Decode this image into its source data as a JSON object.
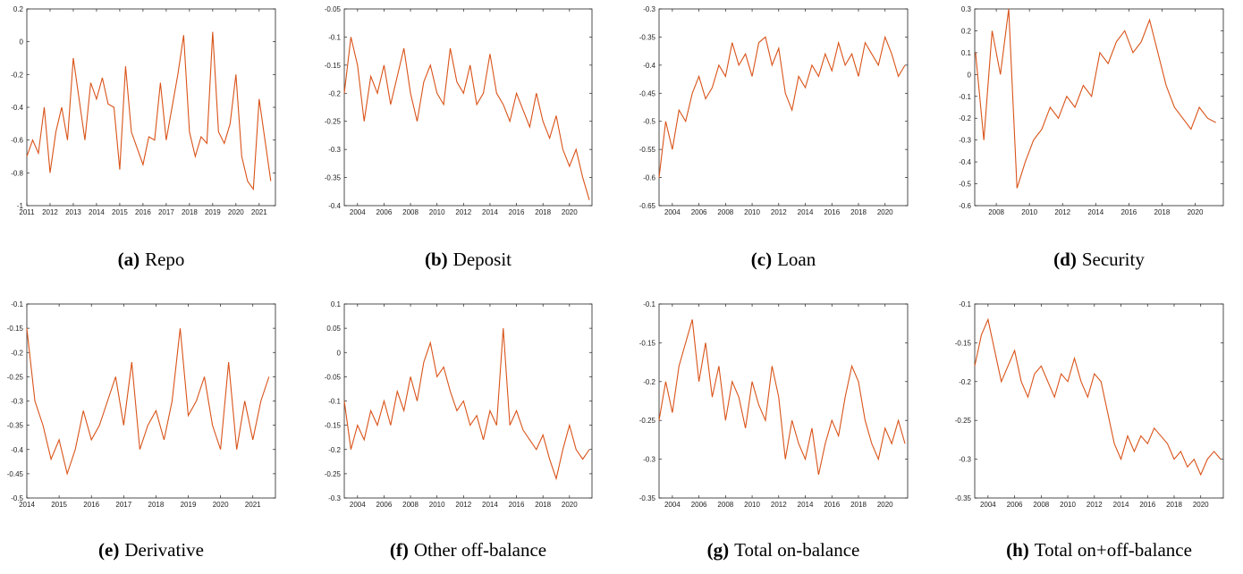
{
  "chart_data": [
    {
      "type": "line",
      "caption_label": "(a)",
      "caption": "Repo",
      "x": [
        2011,
        2011.25,
        2011.5,
        2011.75,
        2012,
        2012.25,
        2012.5,
        2012.75,
        2013,
        2013.25,
        2013.5,
        2013.75,
        2014,
        2014.25,
        2014.5,
        2014.75,
        2015,
        2015.25,
        2015.5,
        2015.75,
        2016,
        2016.25,
        2016.5,
        2016.75,
        2017,
        2017.25,
        2017.5,
        2017.75,
        2018,
        2018.25,
        2018.5,
        2018.75,
        2019,
        2019.25,
        2019.5,
        2019.75,
        2020,
        2020.25,
        2020.5,
        2020.75,
        2021,
        2021.25,
        2021.5
      ],
      "series": [
        {
          "color": "#d95319",
          "values": [
            -0.7,
            -0.6,
            -0.68,
            -0.4,
            -0.8,
            -0.55,
            -0.4,
            -0.6,
            -0.1,
            -0.35,
            -0.6,
            -0.25,
            -0.35,
            -0.22,
            -0.38,
            -0.4,
            -0.78,
            -0.15,
            -0.55,
            -0.65,
            -0.75,
            -0.58,
            -0.6,
            -0.25,
            -0.6,
            -0.4,
            -0.2,
            0.04,
            -0.55,
            -0.7,
            -0.58,
            -0.62,
            0.06,
            -0.55,
            -0.62,
            -0.5,
            -0.2,
            -0.7,
            -0.85,
            -0.9,
            -0.35,
            -0.6,
            -0.85
          ]
        }
      ],
      "xlim": [
        2011,
        2021.7
      ],
      "ylim": [
        -1,
        0.2
      ],
      "xticks": [
        2011,
        2012,
        2013,
        2014,
        2015,
        2016,
        2017,
        2018,
        2019,
        2020,
        2021
      ],
      "yticks": [
        -1,
        -0.8,
        -0.6,
        -0.4,
        -0.2,
        0,
        0.2
      ]
    },
    {
      "type": "line",
      "caption_label": "(b)",
      "caption": "Deposit",
      "x": [
        2003,
        2003.5,
        2004,
        2004.5,
        2005,
        2005.5,
        2006,
        2006.5,
        2007,
        2007.5,
        2008,
        2008.5,
        2009,
        2009.5,
        2010,
        2010.5,
        2011,
        2011.5,
        2012,
        2012.5,
        2013,
        2013.5,
        2014,
        2014.5,
        2015,
        2015.5,
        2016,
        2016.5,
        2017,
        2017.5,
        2018,
        2018.5,
        2019,
        2019.5,
        2020,
        2020.5,
        2021,
        2021.5
      ],
      "series": [
        {
          "color": "#d95319",
          "values": [
            -0.2,
            -0.1,
            -0.15,
            -0.25,
            -0.17,
            -0.2,
            -0.15,
            -0.22,
            -0.17,
            -0.12,
            -0.2,
            -0.25,
            -0.18,
            -0.15,
            -0.2,
            -0.22,
            -0.12,
            -0.18,
            -0.2,
            -0.15,
            -0.22,
            -0.2,
            -0.13,
            -0.2,
            -0.22,
            -0.25,
            -0.2,
            -0.23,
            -0.26,
            -0.2,
            -0.25,
            -0.28,
            -0.24,
            -0.3,
            -0.33,
            -0.3,
            -0.35,
            -0.39
          ]
        }
      ],
      "xlim": [
        2003,
        2021.7
      ],
      "ylim": [
        -0.4,
        -0.05
      ],
      "xticks": [
        2004,
        2006,
        2008,
        2010,
        2012,
        2014,
        2016,
        2018,
        2020
      ],
      "yticks": [
        -0.4,
        -0.35,
        -0.3,
        -0.25,
        -0.2,
        -0.15,
        -0.1,
        -0.05
      ]
    },
    {
      "type": "line",
      "caption_label": "(c)",
      "caption": "Loan",
      "x": [
        2003,
        2003.5,
        2004,
        2004.5,
        2005,
        2005.5,
        2006,
        2006.5,
        2007,
        2007.5,
        2008,
        2008.5,
        2009,
        2009.5,
        2010,
        2010.5,
        2011,
        2011.5,
        2012,
        2012.5,
        2013,
        2013.5,
        2014,
        2014.5,
        2015,
        2015.5,
        2016,
        2016.5,
        2017,
        2017.5,
        2018,
        2018.5,
        2019,
        2019.5,
        2020,
        2020.5,
        2021,
        2021.5
      ],
      "series": [
        {
          "color": "#d95319",
          "values": [
            -0.6,
            -0.5,
            -0.55,
            -0.48,
            -0.5,
            -0.45,
            -0.42,
            -0.46,
            -0.44,
            -0.4,
            -0.42,
            -0.36,
            -0.4,
            -0.38,
            -0.42,
            -0.36,
            -0.35,
            -0.4,
            -0.37,
            -0.45,
            -0.48,
            -0.42,
            -0.44,
            -0.4,
            -0.42,
            -0.38,
            -0.41,
            -0.36,
            -0.4,
            -0.38,
            -0.42,
            -0.36,
            -0.38,
            -0.4,
            -0.35,
            -0.38,
            -0.42,
            -0.4
          ]
        }
      ],
      "xlim": [
        2003,
        2021.7
      ],
      "ylim": [
        -0.65,
        -0.3
      ],
      "xticks": [
        2004,
        2006,
        2008,
        2010,
        2012,
        2014,
        2016,
        2018,
        2020
      ],
      "yticks": [
        -0.65,
        -0.6,
        -0.55,
        -0.5,
        -0.45,
        -0.4,
        -0.35,
        -0.3
      ]
    },
    {
      "type": "line",
      "caption_label": "(d)",
      "caption": "Security",
      "x": [
        2006.75,
        2007.25,
        2007.75,
        2008.25,
        2008.75,
        2009.25,
        2009.75,
        2010.25,
        2010.75,
        2011.25,
        2011.75,
        2012.25,
        2012.75,
        2013.25,
        2013.75,
        2014.25,
        2014.75,
        2015.25,
        2015.75,
        2016.25,
        2016.75,
        2017.25,
        2017.75,
        2018.25,
        2018.75,
        2019.25,
        2019.75,
        2020.25,
        2020.75,
        2021.25
      ],
      "series": [
        {
          "color": "#d95319",
          "values": [
            0.1,
            -0.3,
            0.2,
            0,
            0.3,
            -0.52,
            -0.4,
            -0.3,
            -0.25,
            -0.15,
            -0.2,
            -0.1,
            -0.15,
            -0.05,
            -0.1,
            0.1,
            0.05,
            0.15,
            0.2,
            0.1,
            0.15,
            0.25,
            0.1,
            -0.05,
            -0.15,
            -0.2,
            -0.25,
            -0.15,
            -0.2,
            -0.22
          ]
        }
      ],
      "xlim": [
        2006.7,
        2021.7
      ],
      "ylim": [
        -0.6,
        0.3
      ],
      "xticks": [
        2008,
        2010,
        2012,
        2014,
        2016,
        2018,
        2020
      ],
      "yticks": [
        -0.6,
        -0.5,
        -0.4,
        -0.3,
        -0.2,
        -0.1,
        0,
        0.1,
        0.2,
        0.3
      ]
    },
    {
      "type": "line",
      "caption_label": "(e)",
      "caption": "Derivative",
      "x": [
        2014,
        2014.25,
        2014.5,
        2014.75,
        2015,
        2015.25,
        2015.5,
        2015.75,
        2016,
        2016.25,
        2016.5,
        2016.75,
        2017,
        2017.25,
        2017.5,
        2017.75,
        2018,
        2018.25,
        2018.5,
        2018.75,
        2019,
        2019.25,
        2019.5,
        2019.75,
        2020,
        2020.25,
        2020.5,
        2020.75,
        2021,
        2021.25,
        2021.5
      ],
      "series": [
        {
          "color": "#d95319",
          "values": [
            -0.15,
            -0.3,
            -0.35,
            -0.42,
            -0.38,
            -0.45,
            -0.4,
            -0.32,
            -0.38,
            -0.35,
            -0.3,
            -0.25,
            -0.35,
            -0.22,
            -0.4,
            -0.35,
            -0.32,
            -0.38,
            -0.3,
            -0.15,
            -0.33,
            -0.3,
            -0.25,
            -0.35,
            -0.4,
            -0.22,
            -0.4,
            -0.3,
            -0.38,
            -0.3,
            -0.25
          ]
        }
      ],
      "xlim": [
        2014,
        2021.7
      ],
      "ylim": [
        -0.5,
        -0.1
      ],
      "xticks": [
        2014,
        2015,
        2016,
        2017,
        2018,
        2019,
        2020,
        2021
      ],
      "yticks": [
        -0.5,
        -0.45,
        -0.4,
        -0.35,
        -0.3,
        -0.25,
        -0.2,
        -0.15,
        -0.1
      ]
    },
    {
      "type": "line",
      "caption_label": "(f)",
      "caption": "Other off-balance",
      "x": [
        2003,
        2003.5,
        2004,
        2004.5,
        2005,
        2005.5,
        2006,
        2006.5,
        2007,
        2007.5,
        2008,
        2008.5,
        2009,
        2009.5,
        2010,
        2010.5,
        2011,
        2011.5,
        2012,
        2012.5,
        2013,
        2013.5,
        2014,
        2014.5,
        2015,
        2015.5,
        2016,
        2016.5,
        2017,
        2017.5,
        2018,
        2018.5,
        2019,
        2019.5,
        2020,
        2020.5,
        2021,
        2021.5
      ],
      "series": [
        {
          "color": "#d95319",
          "values": [
            -0.1,
            -0.2,
            -0.15,
            -0.18,
            -0.12,
            -0.15,
            -0.1,
            -0.15,
            -0.08,
            -0.12,
            -0.05,
            -0.1,
            -0.02,
            0.02,
            -0.05,
            -0.03,
            -0.08,
            -0.12,
            -0.1,
            -0.15,
            -0.13,
            -0.18,
            -0.12,
            -0.15,
            0.05,
            -0.15,
            -0.12,
            -0.16,
            -0.18,
            -0.2,
            -0.17,
            -0.22,
            -0.26,
            -0.2,
            -0.15,
            -0.2,
            -0.22,
            -0.2
          ]
        }
      ],
      "xlim": [
        2003,
        2021.7
      ],
      "ylim": [
        -0.3,
        0.1
      ],
      "xticks": [
        2004,
        2006,
        2008,
        2010,
        2012,
        2014,
        2016,
        2018,
        2020
      ],
      "yticks": [
        -0.3,
        -0.25,
        -0.2,
        -0.15,
        -0.1,
        -0.05,
        0,
        0.05,
        0.1
      ]
    },
    {
      "type": "line",
      "caption_label": "(g)",
      "caption": "Total on-balance",
      "x": [
        2003,
        2003.5,
        2004,
        2004.5,
        2005,
        2005.5,
        2006,
        2006.5,
        2007,
        2007.5,
        2008,
        2008.5,
        2009,
        2009.5,
        2010,
        2010.5,
        2011,
        2011.5,
        2012,
        2012.5,
        2013,
        2013.5,
        2014,
        2014.5,
        2015,
        2015.5,
        2016,
        2016.5,
        2017,
        2017.5,
        2018,
        2018.5,
        2019,
        2019.5,
        2020,
        2020.5,
        2021,
        2021.5
      ],
      "series": [
        {
          "color": "#d95319",
          "values": [
            -0.25,
            -0.2,
            -0.24,
            -0.18,
            -0.15,
            -0.12,
            -0.2,
            -0.15,
            -0.22,
            -0.18,
            -0.25,
            -0.2,
            -0.22,
            -0.26,
            -0.2,
            -0.23,
            -0.25,
            -0.18,
            -0.22,
            -0.3,
            -0.25,
            -0.28,
            -0.3,
            -0.26,
            -0.32,
            -0.28,
            -0.25,
            -0.27,
            -0.22,
            -0.18,
            -0.2,
            -0.25,
            -0.28,
            -0.3,
            -0.26,
            -0.28,
            -0.25,
            -0.28
          ]
        }
      ],
      "xlim": [
        2003,
        2021.7
      ],
      "ylim": [
        -0.35,
        -0.1
      ],
      "xticks": [
        2004,
        2006,
        2008,
        2010,
        2012,
        2014,
        2016,
        2018,
        2020
      ],
      "yticks": [
        -0.35,
        -0.3,
        -0.25,
        -0.2,
        -0.15,
        -0.1
      ]
    },
    {
      "type": "line",
      "caption_label": "(h)",
      "caption": "Total on+off-balance",
      "x": [
        2003,
        2003.5,
        2004,
        2004.5,
        2005,
        2005.5,
        2006,
        2006.5,
        2007,
        2007.5,
        2008,
        2008.5,
        2009,
        2009.5,
        2010,
        2010.5,
        2011,
        2011.5,
        2012,
        2012.5,
        2013,
        2013.5,
        2014,
        2014.5,
        2015,
        2015.5,
        2016,
        2016.5,
        2017,
        2017.5,
        2018,
        2018.5,
        2019,
        2019.5,
        2020,
        2020.5,
        2021,
        2021.5
      ],
      "series": [
        {
          "color": "#d95319",
          "values": [
            -0.18,
            -0.14,
            -0.12,
            -0.16,
            -0.2,
            -0.18,
            -0.16,
            -0.2,
            -0.22,
            -0.19,
            -0.18,
            -0.2,
            -0.22,
            -0.19,
            -0.2,
            -0.17,
            -0.2,
            -0.22,
            -0.19,
            -0.2,
            -0.24,
            -0.28,
            -0.3,
            -0.27,
            -0.29,
            -0.27,
            -0.28,
            -0.26,
            -0.27,
            -0.28,
            -0.3,
            -0.29,
            -0.31,
            -0.3,
            -0.32,
            -0.3,
            -0.29,
            -0.3
          ]
        }
      ],
      "xlim": [
        2003,
        2021.7
      ],
      "ylim": [
        -0.35,
        -0.1
      ],
      "xticks": [
        2004,
        2006,
        2008,
        2010,
        2012,
        2014,
        2016,
        2018,
        2020
      ],
      "yticks": [
        -0.35,
        -0.3,
        -0.25,
        -0.2,
        -0.15,
        -0.1
      ]
    }
  ]
}
